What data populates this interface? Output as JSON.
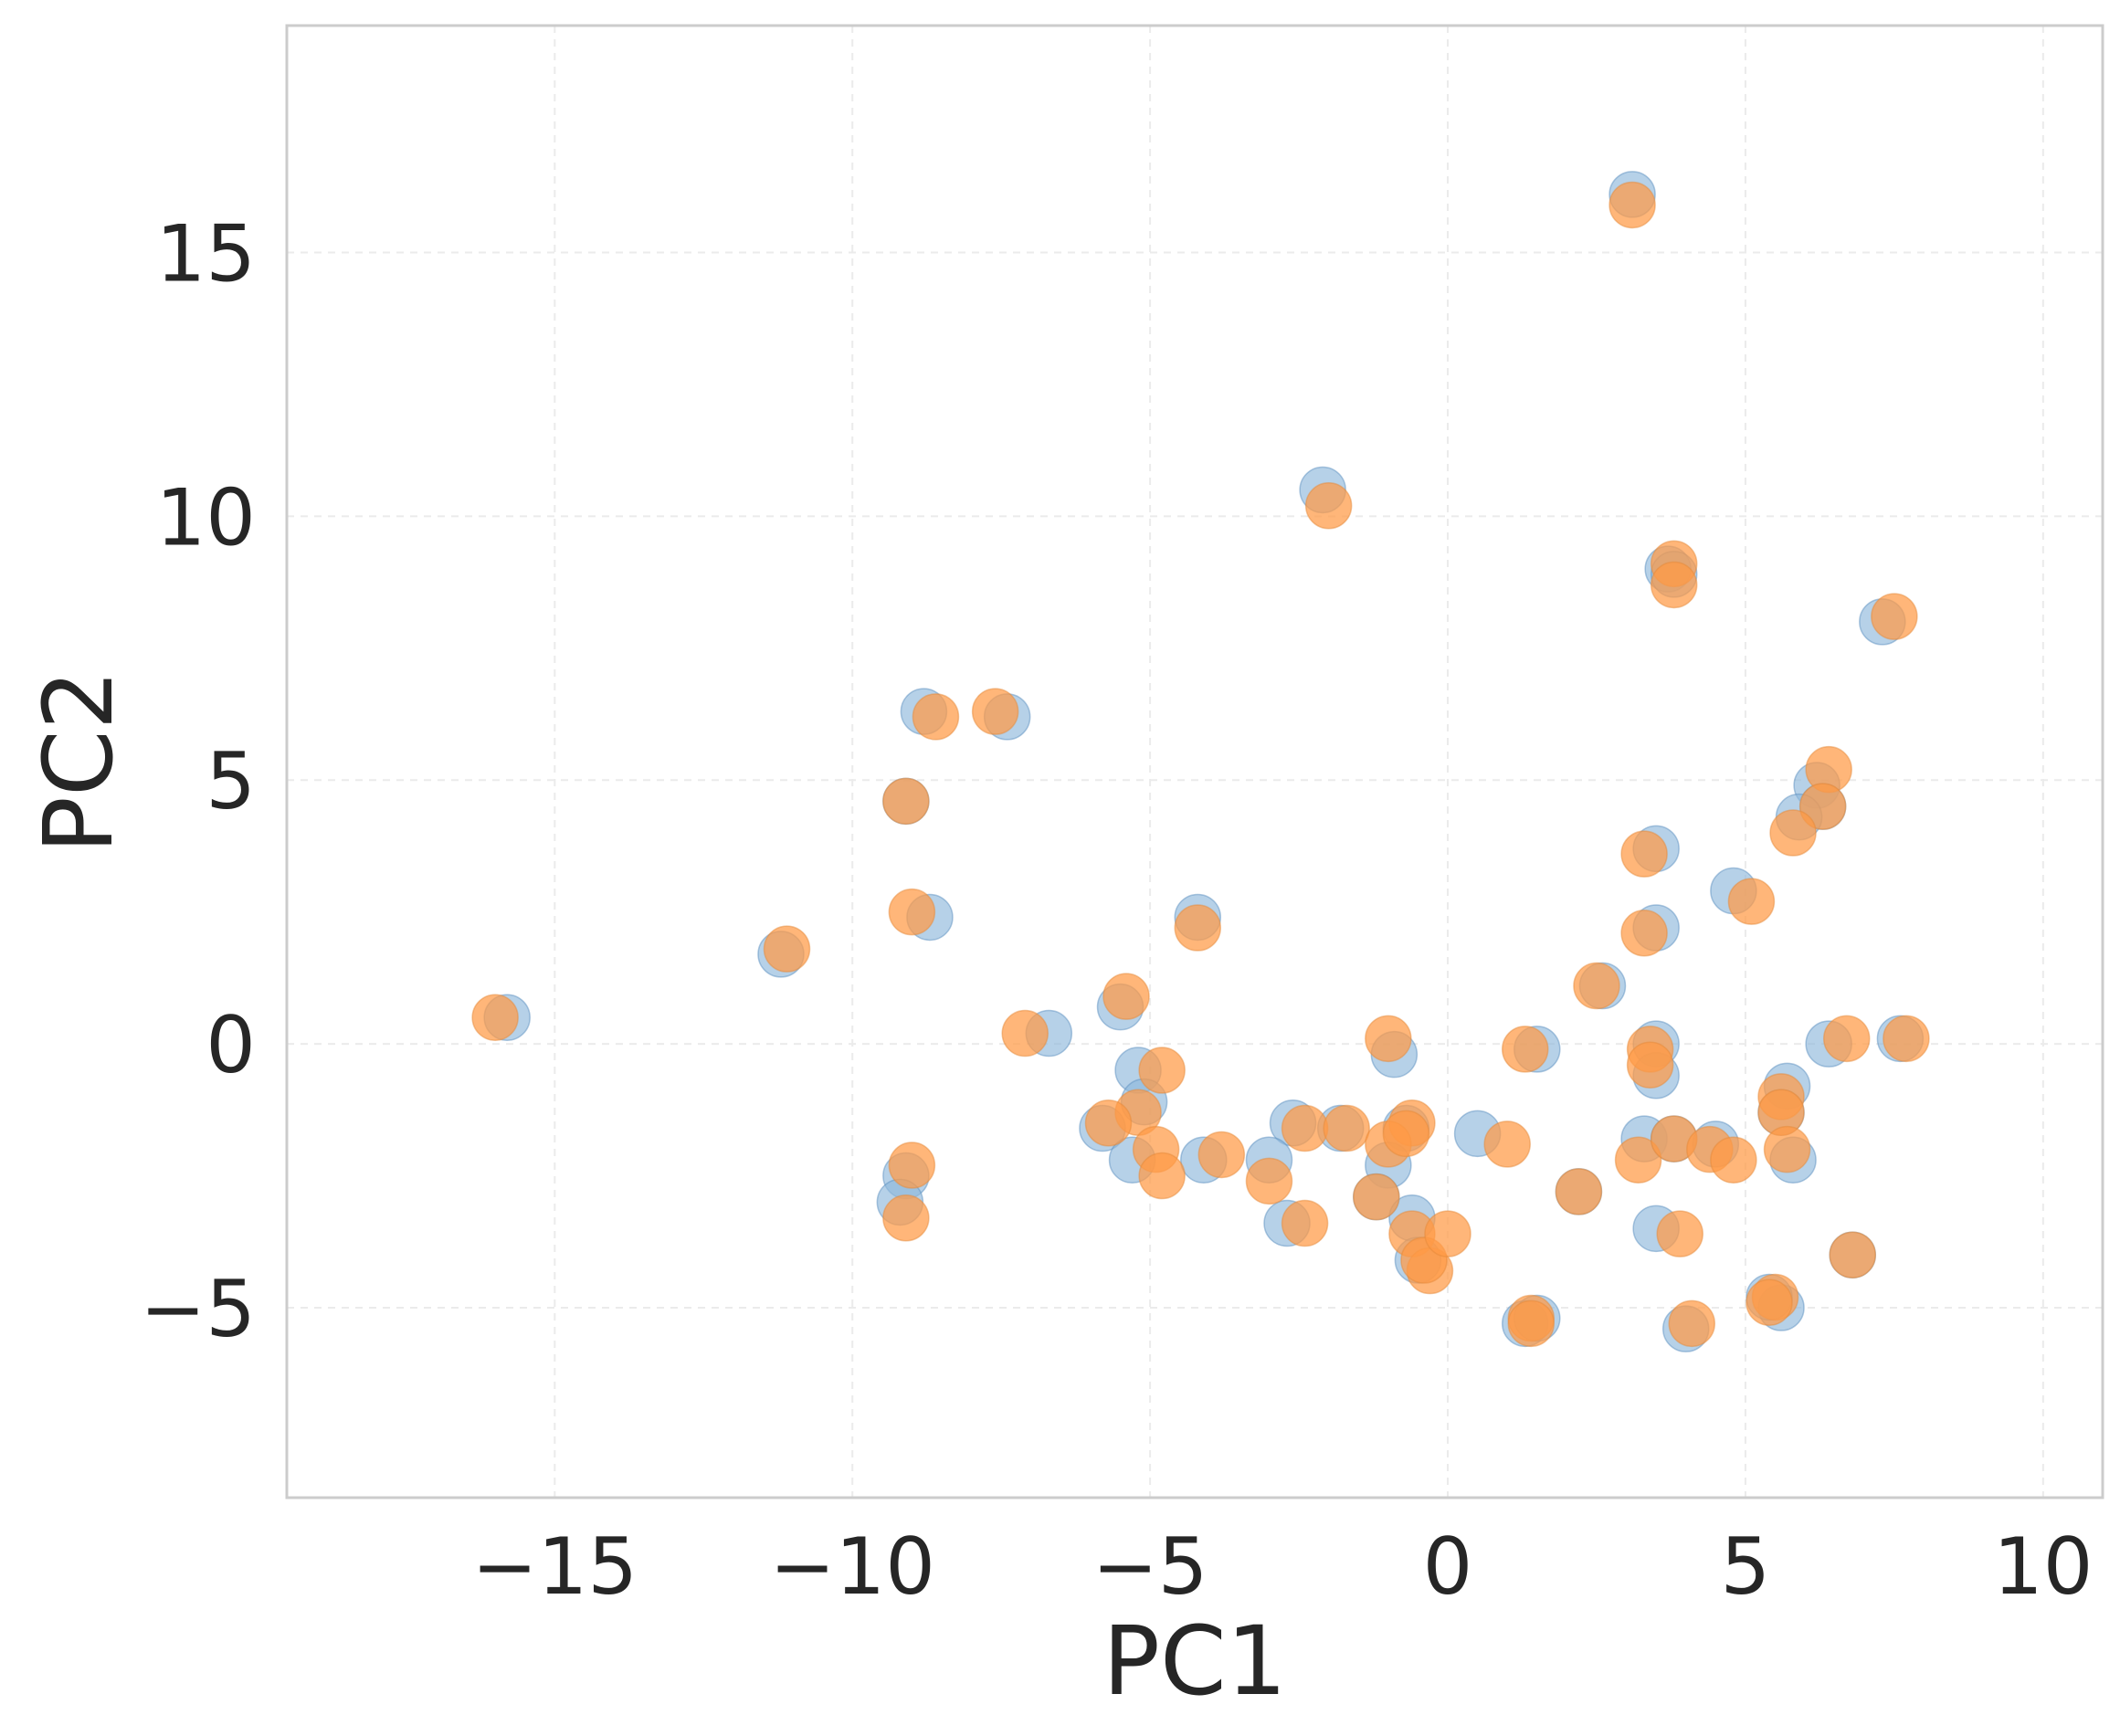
{
  "chart_data": {
    "type": "scatter",
    "title": "",
    "xlabel": "PC1",
    "ylabel": "PC2",
    "xlim": [
      -19.5,
      11.0
    ],
    "ylim": [
      -8.6,
      19.3
    ],
    "xticks": [
      -15,
      -10,
      -5,
      0,
      5,
      10
    ],
    "yticks": [
      -5,
      0,
      5,
      10,
      15
    ],
    "xtick_labels": [
      "−15",
      "−10",
      "−5",
      "0",
      "5",
      "10"
    ],
    "ytick_labels": [
      "−5",
      "0",
      "5",
      "10",
      "15"
    ],
    "grid": true,
    "legend": "none",
    "series": [
      {
        "color": "#8fb9dc",
        "edge": "#5b8fbf",
        "opacity": 0.65,
        "x": [
          3.1,
          -2.1,
          3.7,
          3.8,
          7.3,
          -8.8,
          -7.4,
          -9.1,
          6.2,
          6.3,
          5.9,
          3.5,
          4.8,
          -8.7,
          -11.2,
          -4.2,
          3.5,
          2.6,
          -5.5,
          -15.8,
          -6.7,
          -0.9,
          1.5,
          3.5,
          6.4,
          7.6,
          -5.2,
          -5.1,
          3.5,
          5.7,
          5.6,
          -5.8,
          -2.6,
          -1.8,
          -0.7,
          0.5,
          3.3,
          3.8,
          4.5,
          5.8,
          -5.3,
          -3.0,
          -4.1,
          -1.0,
          -9.1,
          -9.2,
          -1.2,
          -0.6,
          -2.7,
          -0.5,
          2.2,
          3.5,
          6.8,
          1.3,
          1.5,
          4.0,
          5.6,
          5.4
        ],
        "y": [
          16.1,
          10.5,
          9.0,
          8.9,
          8.0,
          6.3,
          6.2,
          4.6,
          4.9,
          4.5,
          4.3,
          3.7,
          2.9,
          2.4,
          1.7,
          2.4,
          2.2,
          1.1,
          0.7,
          0.5,
          0.2,
          -0.2,
          -0.1,
          0.0,
          0.0,
          0.1,
          -0.5,
          -1.1,
          -0.6,
          -0.8,
          -1.3,
          -1.6,
          -1.5,
          -1.6,
          -1.6,
          -1.7,
          -1.8,
          -1.8,
          -1.9,
          -2.2,
          -2.2,
          -2.2,
          -2.2,
          -2.3,
          -2.5,
          -3.0,
          -2.9,
          -3.3,
          -3.4,
          -4.1,
          -2.8,
          -3.5,
          -4.0,
          -5.3,
          -5.2,
          -5.4,
          -5.0,
          -4.8
        ]
      },
      {
        "color": "#ff9a45",
        "edge": "#e58a3a",
        "opacity": 0.72,
        "x": [
          3.1,
          -2.0,
          3.8,
          3.8,
          7.5,
          -8.6,
          -7.6,
          -9.1,
          6.4,
          6.3,
          5.8,
          3.3,
          5.1,
          -9.0,
          -11.1,
          -4.2,
          3.3,
          2.5,
          -5.4,
          -16.0,
          -7.1,
          -1.0,
          1.3,
          3.4,
          6.7,
          7.7,
          -4.8,
          -5.2,
          3.4,
          5.6,
          5.6,
          -5.7,
          -2.4,
          -1.7,
          -0.6,
          1.0,
          3.2,
          3.8,
          4.4,
          5.7,
          -4.9,
          -3.0,
          -3.8,
          -1.0,
          -9.0,
          -9.1,
          -1.2,
          -0.6,
          -2.4,
          -0.3,
          2.2,
          3.9,
          6.8,
          1.4,
          1.4,
          4.1,
          5.5,
          5.4,
          -4.8,
          -0.4,
          0.0,
          4.8,
          -0.7
        ],
        "y": [
          15.9,
          10.2,
          9.1,
          8.7,
          8.1,
          6.2,
          6.3,
          4.6,
          5.2,
          4.5,
          4.0,
          3.6,
          2.7,
          2.5,
          1.8,
          2.2,
          2.1,
          1.1,
          0.9,
          0.5,
          0.2,
          0.1,
          -0.1,
          -0.1,
          0.1,
          0.1,
          -0.5,
          -1.3,
          -0.4,
          -1.0,
          -1.3,
          -1.5,
          -1.6,
          -1.6,
          -1.5,
          -1.9,
          -2.2,
          -1.8,
          -2.0,
          -2.0,
          -2.0,
          -2.6,
          -2.1,
          -1.9,
          -2.3,
          -3.3,
          -2.9,
          -3.6,
          -3.4,
          -4.3,
          -2.8,
          -3.6,
          -4.0,
          -5.2,
          -5.3,
          -5.3,
          -4.8,
          -4.9,
          -2.5,
          -4.1,
          -3.6,
          -2.2,
          -1.7
        ]
      }
    ]
  }
}
